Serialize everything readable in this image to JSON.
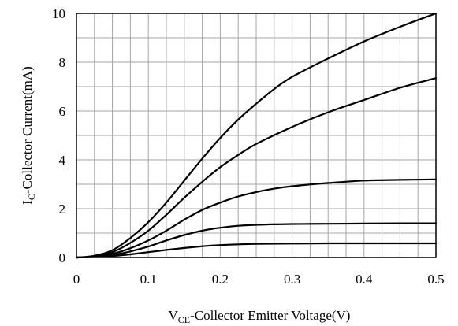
{
  "chart_data": {
    "type": "line",
    "xlabel_main": "V",
    "xlabel_sub": "CE",
    "xlabel_rest": "-Collector Emitter Voltage(V)",
    "ylabel_main": "I",
    "ylabel_sub": "C",
    "ylabel_rest": "-Collector Current(mA)",
    "xlim": [
      0,
      0.5
    ],
    "ylim": [
      0,
      10
    ],
    "x_ticks": [
      0,
      0.1,
      0.2,
      0.3,
      0.4,
      0.5
    ],
    "x_tick_labels": [
      "0",
      "0.1",
      "0.2",
      "0.3",
      "0.4",
      "0.5"
    ],
    "y_ticks": [
      0,
      2,
      4,
      6,
      8,
      10
    ],
    "y_tick_labels": [
      "0",
      "2",
      "4",
      "6",
      "8",
      "10"
    ],
    "x_minor_step": 0.025,
    "y_minor_step": 1,
    "grid": true,
    "series": [
      {
        "x": [
          0,
          0.025,
          0.05,
          0.075,
          0.1,
          0.125,
          0.15,
          0.175,
          0.2,
          0.225,
          0.25,
          0.3,
          0.35,
          0.4,
          0.45,
          0.5
        ],
        "values": [
          0,
          0.02,
          0.06,
          0.13,
          0.22,
          0.31,
          0.39,
          0.46,
          0.51,
          0.54,
          0.56,
          0.57,
          0.58,
          0.58,
          0.58,
          0.58
        ]
      },
      {
        "x": [
          0,
          0.025,
          0.05,
          0.075,
          0.1,
          0.125,
          0.15,
          0.175,
          0.2,
          0.225,
          0.25,
          0.3,
          0.35,
          0.4,
          0.45,
          0.5
        ],
        "values": [
          0,
          0.03,
          0.1,
          0.25,
          0.45,
          0.7,
          0.92,
          1.1,
          1.22,
          1.3,
          1.34,
          1.37,
          1.38,
          1.39,
          1.4,
          1.4
        ]
      },
      {
        "x": [
          0,
          0.025,
          0.05,
          0.075,
          0.1,
          0.125,
          0.15,
          0.175,
          0.2,
          0.225,
          0.25,
          0.275,
          0.3,
          0.35,
          0.4,
          0.45,
          0.5
        ],
        "values": [
          0,
          0.04,
          0.15,
          0.38,
          0.7,
          1.1,
          1.55,
          1.95,
          2.25,
          2.5,
          2.68,
          2.82,
          2.92,
          3.05,
          3.15,
          3.18,
          3.2
        ]
      },
      {
        "x": [
          0,
          0.025,
          0.05,
          0.075,
          0.1,
          0.125,
          0.15,
          0.175,
          0.2,
          0.225,
          0.25,
          0.3,
          0.35,
          0.4,
          0.45,
          0.5
        ],
        "values": [
          0,
          0.05,
          0.22,
          0.6,
          1.1,
          1.75,
          2.45,
          3.1,
          3.7,
          4.2,
          4.65,
          5.35,
          5.95,
          6.45,
          6.95,
          7.35
        ]
      },
      {
        "x": [
          0,
          0.025,
          0.05,
          0.075,
          0.1,
          0.125,
          0.15,
          0.175,
          0.2,
          0.225,
          0.25,
          0.275,
          0.3,
          0.35,
          0.4,
          0.45,
          0.5
        ],
        "values": [
          0,
          0.07,
          0.3,
          0.8,
          1.45,
          2.25,
          3.15,
          4.05,
          4.9,
          5.65,
          6.3,
          6.9,
          7.4,
          8.15,
          8.85,
          9.45,
          10.0
        ]
      }
    ]
  }
}
